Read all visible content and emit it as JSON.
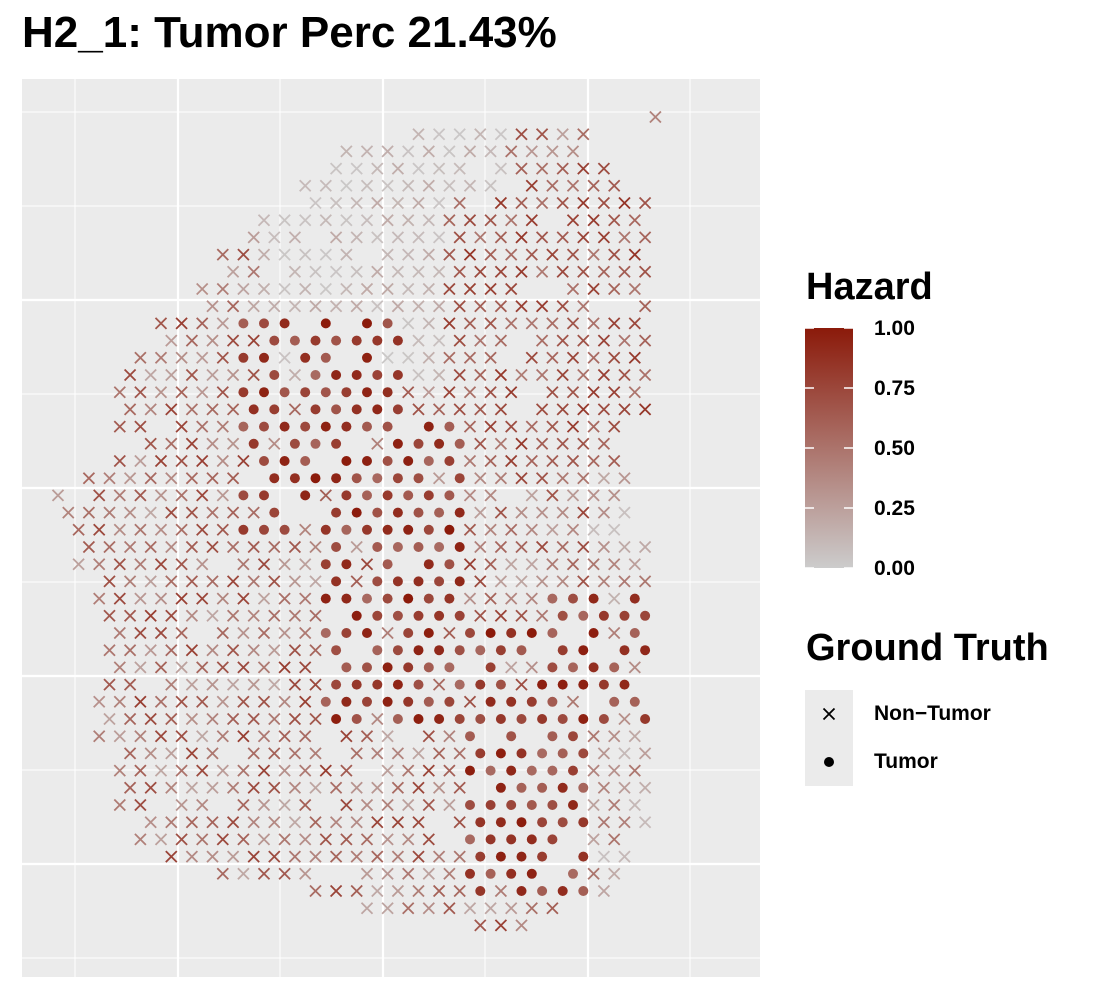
{
  "title": "H2_1: Tumor Perc 21.43%",
  "chart_data": {
    "type": "scatter",
    "title": "H2_1: Tumor Perc 21.43%",
    "xlabel": "",
    "ylabel": "",
    "grid": true,
    "axes_visible": false,
    "color_scale": {
      "title": "Hazard",
      "low_color": "#cccccc",
      "high_color": "#8b1a0a",
      "range": [
        0,
        1
      ],
      "ticks": [
        {
          "value": 0.0,
          "label": "0.00"
        },
        {
          "value": 0.25,
          "label": "0.25"
        },
        {
          "value": 0.5,
          "label": "0.50"
        },
        {
          "value": 0.75,
          "label": "0.75"
        },
        {
          "value": 1.0,
          "label": "1.00"
        }
      ]
    },
    "shape_legend": {
      "title": "Ground Truth",
      "items": [
        {
          "label": "Non−Tumor",
          "shape": "x"
        },
        {
          "label": "Tumor",
          "shape": "dot"
        }
      ]
    },
    "legend_position": "right",
    "point_grid": {
      "rows": 48,
      "cols": 34,
      "row_extents": [
        [
          29,
          29
        ],
        [
          17,
          25
        ],
        [
          14,
          25
        ],
        [
          13,
          26
        ],
        [
          12,
          27
        ],
        [
          12,
          28
        ],
        [
          10,
          28
        ],
        [
          9,
          28
        ],
        [
          8,
          28
        ],
        [
          8,
          28
        ],
        [
          7,
          28
        ],
        [
          7,
          28
        ],
        [
          5,
          28
        ],
        [
          4,
          28
        ],
        [
          4,
          28
        ],
        [
          3,
          28
        ],
        [
          3,
          28
        ],
        [
          3,
          28
        ],
        [
          3,
          27
        ],
        [
          3,
          27
        ],
        [
          3,
          27
        ],
        [
          1,
          27
        ],
        [
          0,
          27
        ],
        [
          0,
          27
        ],
        [
          1,
          27
        ],
        [
          1,
          28
        ],
        [
          1,
          28
        ],
        [
          2,
          28
        ],
        [
          2,
          28
        ],
        [
          2,
          28
        ],
        [
          2,
          28
        ],
        [
          2,
          28
        ],
        [
          2,
          28
        ],
        [
          2,
          28
        ],
        [
          2,
          28
        ],
        [
          2,
          28
        ],
        [
          2,
          28
        ],
        [
          3,
          28
        ],
        [
          3,
          28
        ],
        [
          3,
          28
        ],
        [
          3,
          28
        ],
        [
          4,
          28
        ],
        [
          4,
          27
        ],
        [
          5,
          27
        ],
        [
          8,
          27
        ],
        [
          12,
          26
        ],
        [
          15,
          24
        ],
        [
          20,
          22
        ]
      ],
      "tumor_regions": [
        {
          "rows": [
            12,
            24
          ],
          "cols": [
            9,
            16
          ]
        },
        {
          "rows": [
            18,
            35
          ],
          "cols": [
            13,
            19
          ]
        },
        {
          "rows": [
            30,
            45
          ],
          "cols": [
            20,
            25
          ]
        },
        {
          "rows": [
            28,
            35
          ],
          "cols": [
            24,
            28
          ]
        }
      ],
      "high_hazard_region": {
        "rows": [
          5,
          20
        ],
        "cols": [
          19,
          28
        ]
      },
      "hazard_overall": "predominantly 0.25–0.75, highest (~0.8–1.0) in tumor cores, lowest (~0–0.1) in the upper central area"
    }
  }
}
